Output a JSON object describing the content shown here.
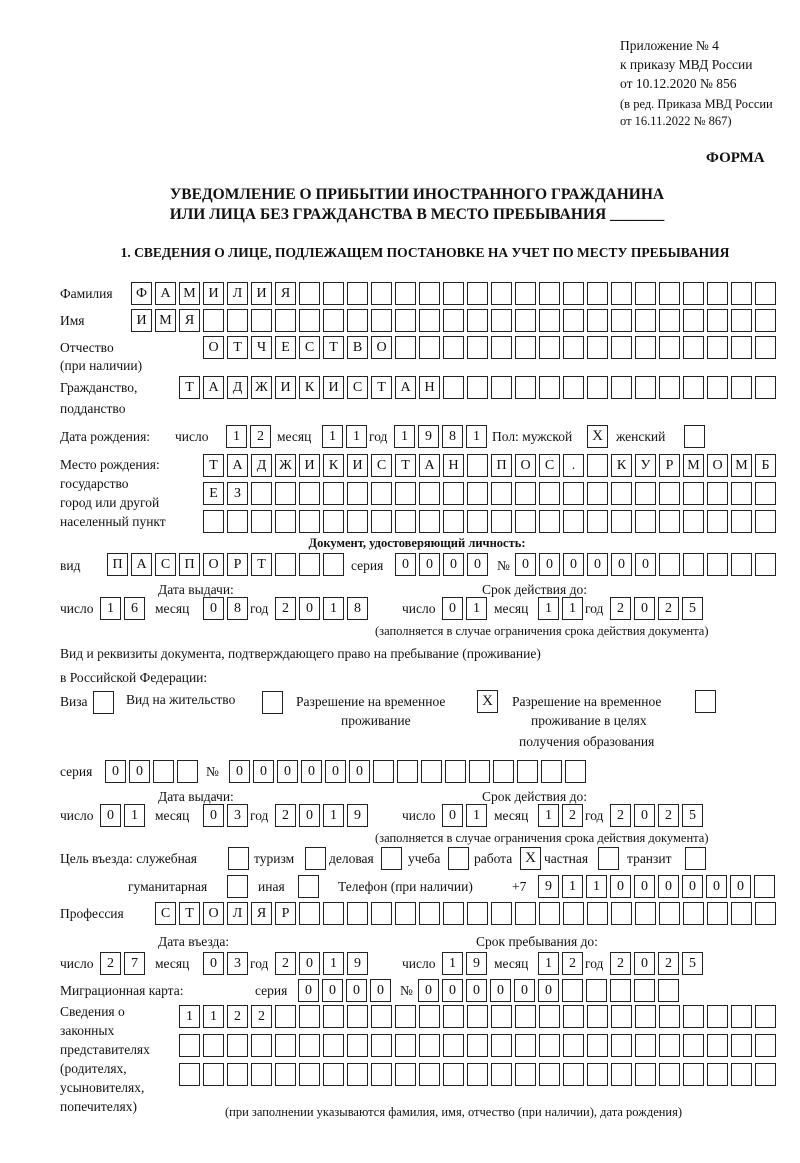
{
  "header": {
    "appendix": "Приложение № 4",
    "order": "к приказу МВД России",
    "order_date": "от 10.12.2020 № 856",
    "amendment1": "(в ред. Приказа МВД России",
    "amendment2": "от 16.11.2022 № 867)",
    "form_label": "ФОРМА"
  },
  "title": {
    "line1": "УВЕДОМЛЕНИЕ О ПРИБЫТИИ ИНОСТРАННОГО ГРАЖДАНИНА",
    "line2": "ИЛИ ЛИЦА БЕЗ ГРАЖДАНСТВА В МЕСТО ПРЕБЫВАНИЯ _______"
  },
  "section1": {
    "heading": "1. СВЕДЕНИЯ О ЛИЦЕ, ПОДЛЕЖАЩЕМ ПОСТАНОВКЕ НА УЧЕТ ПО МЕСТУ ПРЕБЫВАНИЯ",
    "labels": {
      "surname": "Фамилия",
      "name": "Имя",
      "patronymic": "Отчество",
      "patronymic_note": "(при наличии)",
      "citizenship": "Гражданство,",
      "citizenship2": "подданство",
      "birth_date": "Дата рождения:",
      "day": "число",
      "month": "месяц",
      "year": "год",
      "sex": "Пол: мужской",
      "female": "женский",
      "birth_place": "Место рождения:",
      "birth_place2": "государство",
      "birth_place3": "город или другой",
      "birth_place4": "населенный пункт",
      "id_doc": "Документ, удостоверяющий личность:",
      "kind": "вид",
      "series": "серия",
      "number": "№",
      "issue_date": "Дата выдачи:",
      "valid_until": "Срок действия до:",
      "validity_note": "(заполняется в случае ограничения срока действия документа)",
      "stay_doc1": "Вид и реквизиты документа, подтверждающего право на пребывание (проживание)",
      "stay_doc2": "в Российской Федерации:",
      "visa": "Виза",
      "residence": "Вид на жительство",
      "temp_res1": "Разрешение на временное",
      "temp_res2": "проживание",
      "temp_edu1": "Разрешение на временное",
      "temp_edu2": "проживание в целях",
      "temp_edu3": "получения образования",
      "purpose": "Цель въезда: служебная",
      "tourism": "туризм",
      "business": "деловая",
      "study": "учеба",
      "work": "работа",
      "private": "частная",
      "transit": "транзит",
      "humanitarian": "гуманитарная",
      "other": "иная",
      "phone": "Телефон (при наличии)",
      "phone_prefix": "+7",
      "profession": "Профессия",
      "entry_date": "Дата въезда:",
      "stay_until": "Срок пребывания до:",
      "migration_card": "Миграционная карта:",
      "reps1": "Сведения о",
      "reps2": "законных",
      "reps3": "представителях",
      "reps4": "(родителях,",
      "reps5": "усыновителях,",
      "reps6": "попечителях)",
      "reps_note": "(при заполнении указываются фамилия, имя, отчество (при наличии), дата рождения)"
    },
    "values": {
      "surname": "ФАМИЛИЯ",
      "name": "ИМЯ",
      "patronymic": "ОТЧЕСТВО",
      "citizenship": "ТАДЖИКИСТАН",
      "birth_day": "12",
      "birth_month": "11",
      "birth_year": "1981",
      "sex_male": "X",
      "sex_female": "",
      "birth_place_line1": "ТАДЖИКИСТАН ПОС. КУРМОМБ",
      "birth_place_line2": "ЕЗ",
      "birth_place_line3": "",
      "id_kind": "ПАСПОРТ",
      "id_series": "0000",
      "id_number": "000000",
      "id_issue_day": "16",
      "id_issue_month": "08",
      "id_issue_year": "2018",
      "id_valid_day": "01",
      "id_valid_month": "11",
      "id_valid_year": "2025",
      "visa": "",
      "residence": "",
      "temp_residence": "X",
      "temp_residence_edu": "",
      "stay_series": "00",
      "stay_number": "000000",
      "stay_issue_day": "01",
      "stay_issue_month": "03",
      "stay_issue_year": "2019",
      "stay_valid_day": "01",
      "stay_valid_month": "12",
      "stay_valid_year": "2025",
      "purpose_official": "",
      "purpose_tourism": "",
      "purpose_business": "",
      "purpose_study": "",
      "purpose_work": "X",
      "purpose_private": "",
      "purpose_transit": "",
      "purpose_humanitarian": "",
      "purpose_other": "",
      "phone": "911000000",
      "profession": "СТОЛЯР",
      "entry_day": "27",
      "entry_month": "03",
      "entry_year": "2019",
      "stay_until_day": "19",
      "stay_until_month": "12",
      "stay_until_year": "2025",
      "mig_series": "0000",
      "mig_number": "000000",
      "reps_line1": "1122",
      "reps_line2": "",
      "reps_line3": ""
    }
  }
}
